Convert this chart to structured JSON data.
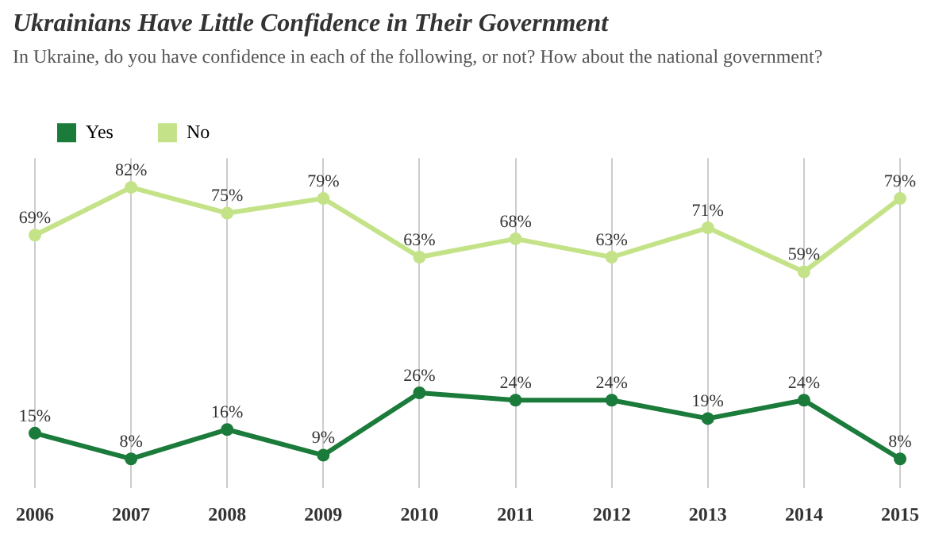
{
  "chart_data": {
    "type": "line",
    "title": "Ukrainians Have Little Confidence in Their Government",
    "subtitle": "In Ukraine, do you have confidence in each of the following, or not? How about the national government?",
    "categories": [
      "2006",
      "2007",
      "2008",
      "2009",
      "2010",
      "2011",
      "2012",
      "2013",
      "2014",
      "2015"
    ],
    "series": [
      {
        "name": "Yes",
        "color": "#1b7b3a",
        "values": [
          15,
          8,
          16,
          9,
          26,
          24,
          24,
          19,
          24,
          8
        ],
        "value_labels": [
          "15%",
          "8%",
          "16%",
          "9%",
          "26%",
          "24%",
          "24%",
          "19%",
          "24%",
          "8%"
        ]
      },
      {
        "name": "No",
        "color": "#c4e388",
        "values": [
          69,
          82,
          75,
          79,
          63,
          68,
          63,
          71,
          59,
          79
        ],
        "value_labels": [
          "69%",
          "82%",
          "75%",
          "79%",
          "63%",
          "68%",
          "63%",
          "71%",
          "59%",
          "79%"
        ]
      }
    ],
    "grid": "x",
    "legend": "top left",
    "marker": "circle",
    "line_style": "solid"
  }
}
